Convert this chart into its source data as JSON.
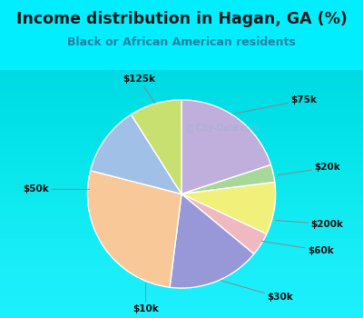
{
  "title": "Income distribution in Hagan, GA (%)",
  "subtitle": "Black or African American residents",
  "labels": [
    "$75k",
    "$20k",
    "$200k",
    "$60k",
    "$30k",
    "$10k",
    "$50k",
    "$125k"
  ],
  "sizes": [
    20,
    3,
    9,
    4,
    16,
    27,
    12,
    9
  ],
  "colors": [
    "#c0aedd",
    "#a8d898",
    "#f0f07a",
    "#f0b8c0",
    "#9898d8",
    "#f8c898",
    "#a0c0e8",
    "#c8e070"
  ],
  "background_color": "#00eeff",
  "chart_bg_top": "#e8f5f0",
  "chart_bg_bottom": "#d0eed8",
  "title_color": "#1a1a1a",
  "subtitle_color": "#2080a0",
  "watermark": "City-Data.com",
  "title_fontsize": 12.5,
  "subtitle_fontsize": 9,
  "label_fontsize": 7.5
}
